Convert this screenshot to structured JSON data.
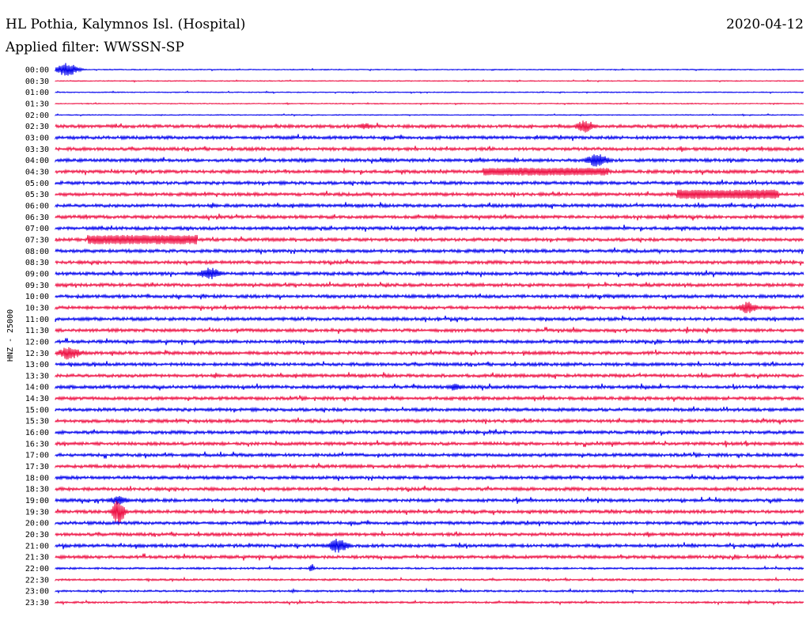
{
  "header": {
    "station": "HL Pothia, Kalymnos Isl. (Hospital)",
    "date": "2020-04-12",
    "filter": "Applied filter: WWSSN-SP"
  },
  "chart_data": {
    "type": "line",
    "ylabel": "HNZ - 25000",
    "row_labels": [
      "00:00",
      "00:30",
      "01:00",
      "01:30",
      "02:00",
      "02:30",
      "03:00",
      "03:30",
      "04:00",
      "04:30",
      "05:00",
      "05:30",
      "06:00",
      "06:30",
      "07:00",
      "07:30",
      "08:00",
      "08:30",
      "09:00",
      "09:30",
      "10:00",
      "10:30",
      "11:00",
      "11:30",
      "12:00",
      "12:30",
      "13:00",
      "13:30",
      "14:00",
      "14:30",
      "15:00",
      "15:30",
      "16:00",
      "16:30",
      "17:00",
      "17:30",
      "18:00",
      "18:30",
      "19:00",
      "19:30",
      "20:00",
      "20:30",
      "21:00",
      "21:30",
      "22:00",
      "22:30",
      "23:00",
      "23:30"
    ],
    "colors": [
      "#0000ee",
      "#ee1144"
    ],
    "grid": false,
    "legend": "none"
  }
}
